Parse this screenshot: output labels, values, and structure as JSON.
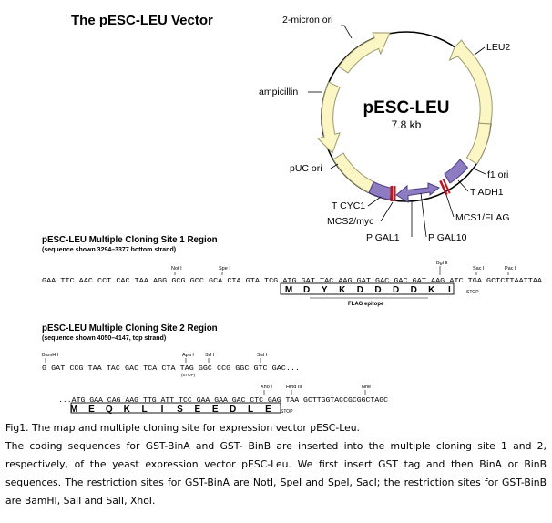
{
  "title": "The pESC-LEU Vector",
  "map": {
    "name": "pESC-LEU",
    "size": "7.8 kb",
    "labels": {
      "two_micron": "2-micron ori",
      "leu2": "LEU2",
      "ampicillin": "ampicillin",
      "puc": "pUC ori",
      "f1": "f1 ori",
      "tadh1": "T ADH1",
      "tcyc1": "T CYC1",
      "mcs2": "MCS2/myc",
      "mcs1": "MCS1/FLAG",
      "pgal1": "P GAL1",
      "pgal10": "P GAL10"
    },
    "colors": {
      "feature": "#fbf6c4",
      "feature_stroke": "#9a9a70",
      "promoter": "#8e7cc3",
      "mcs": "#c0141c"
    }
  },
  "mcs1": {
    "header": "pESC-LEU  Multiple Cloning Site 1 Region",
    "sub": "(sequence shown 3294–3377 bottom strand)",
    "sites": {
      "not1": "Not I",
      "spe1": "Spe I",
      "bgl2": "Bgl II",
      "sac1": "Sac I",
      "pac1": "Pac I"
    },
    "seq_a": "GAA TTC AAC CCT CAC TAA AGG GCG GCC GCA CTA GTA TCG ATG GAT TAC AAG GAT GAC GAC GAT AAG ATC TGA GCTCTTAATTAA",
    "aa": [
      "M",
      "D",
      "Y",
      "K",
      "D",
      "D",
      "D",
      "D",
      "K",
      "I"
    ],
    "stop": "STOP",
    "epitope": "FLAG epitope"
  },
  "mcs2": {
    "header": "pESC-LEU  Multiple Cloning Site 2 Region",
    "sub": "(sequence shown 4050–4147, top strand)",
    "sites": {
      "bamh1": "BamH I",
      "apa1": "Apa I",
      "srf1": "Srf I",
      "sal1": "Sal I",
      "xho1": "Xho I",
      "hind3": "Hind III",
      "nhe1": "Nhe I"
    },
    "seq_a": "G GAT CCG TAA TAC GAC TCA CTA TAG GGC CCG GGC GTC GAC...",
    "stop_a": "(STOP)",
    "seq_b": "...ATG GAA CAG AAG TTG ATT TCC GAA GAA GAC CTC GAG TAA GCTTGGTACCGCGGCTAGC",
    "aa": [
      "M",
      "E",
      "Q",
      "K",
      "L",
      "I",
      "S",
      "E",
      "E",
      "D",
      "L",
      "E"
    ],
    "stop_b": "STOP"
  },
  "caption": {
    "line1": "Fig1. The map and multiple cloning site for expression vector pESC-Leu.",
    "body": "The coding sequences for GST-BinA and GST- BinB are inserted into the multiple cloning site 1 and 2, respectively, of the yeast expression vector pESC-Leu. We first insert GST tag and then BinA or BinB sequences. The restriction sites for GST-BinA are NotI, SpeI and SpeI, SacI; the restriction sites for GST-BinB are BamHI, SalI and SalI, XhoI."
  }
}
